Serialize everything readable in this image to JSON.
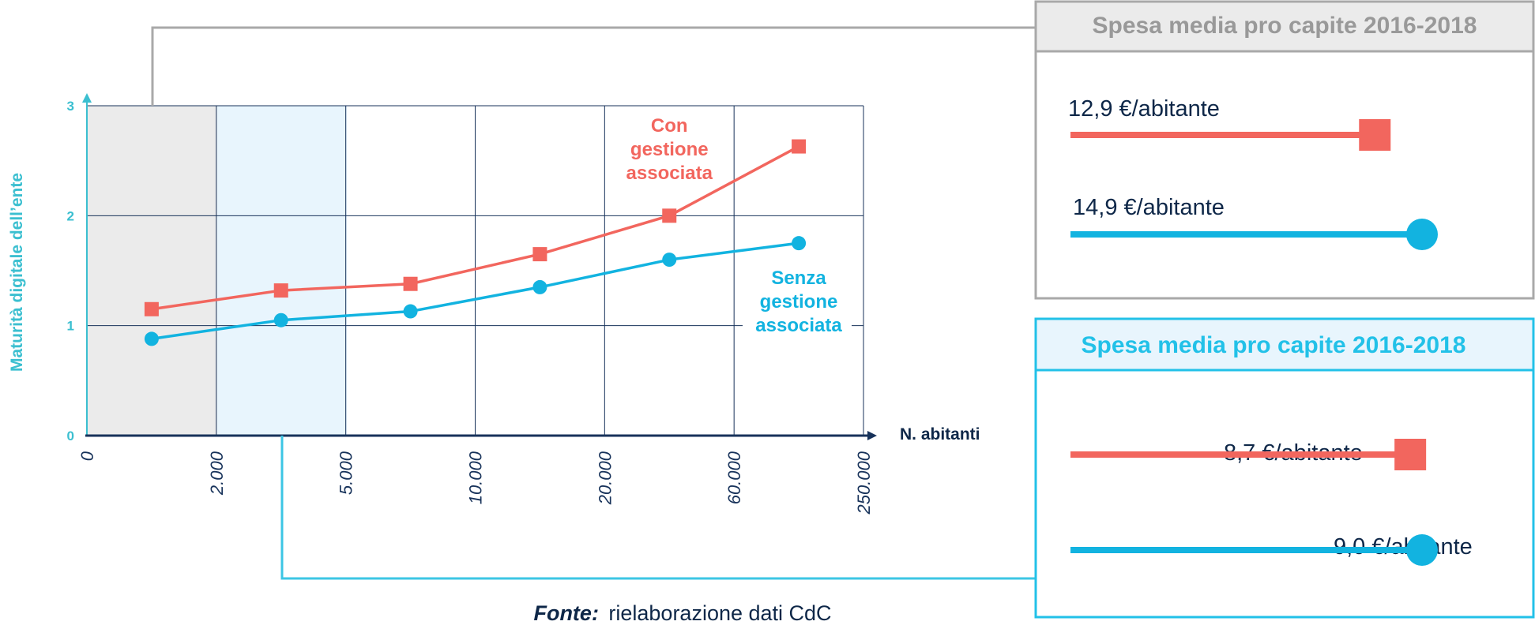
{
  "chart_data": {
    "type": "line",
    "xlabel": "N. abitanti",
    "ylabel": "Maturità digitale dell’ente",
    "x_ticks": [
      "0",
      "2.000",
      "5.000",
      "10.000",
      "20.000",
      "60.000",
      "250.000"
    ],
    "y_ticks": [
      "0",
      "1",
      "2",
      "3"
    ],
    "ylim": [
      0,
      3
    ],
    "grid": true,
    "highlighted_bands": [
      {
        "from": "0",
        "to": "2.000",
        "color": "#ebebeb"
      },
      {
        "from": "2.000",
        "to": "5.000",
        "color": "#e8f5fd"
      }
    ],
    "series": [
      {
        "name": "Con gestione associata",
        "label_lines": [
          "Con",
          "gestione",
          "associata"
        ],
        "marker": "square",
        "color": "#f2665e",
        "values": [
          1.15,
          1.32,
          1.38,
          1.65,
          2.0,
          2.63
        ]
      },
      {
        "name": "Senza gestione associata",
        "label_lines": [
          "Senza",
          "gestione",
          "associata"
        ],
        "marker": "circle",
        "color": "#12b3e0",
        "values": [
          0.88,
          1.05,
          1.13,
          1.35,
          1.6,
          1.75
        ]
      }
    ]
  },
  "panels": [
    {
      "title": "Spesa media pro capite 2016-2018",
      "style": "grey",
      "bars": [
        {
          "label": "12,9 €/abitante",
          "value": 12.9,
          "color": "#f2665e",
          "marker": "square"
        },
        {
          "label": "14,9 €/abitante",
          "value": 14.9,
          "color": "#12b3e0",
          "marker": "circle"
        }
      ]
    },
    {
      "title": "Spesa media pro capite 2016-2018",
      "style": "blue",
      "bars": [
        {
          "label": "8,7 €/abitante",
          "value": 8.7,
          "color": "#f2665e",
          "marker": "square"
        },
        {
          "label": "9,0 €/abitante",
          "value": 9.0,
          "color": "#12b3e0",
          "marker": "circle"
        }
      ]
    }
  ],
  "source": {
    "bold": "Fonte:",
    "text": "rielaborazione dati CdC"
  },
  "colors": {
    "navy": "#17325a",
    "grey_connector": "#a9a9a9",
    "blue_connector": "#3cc6e4"
  }
}
